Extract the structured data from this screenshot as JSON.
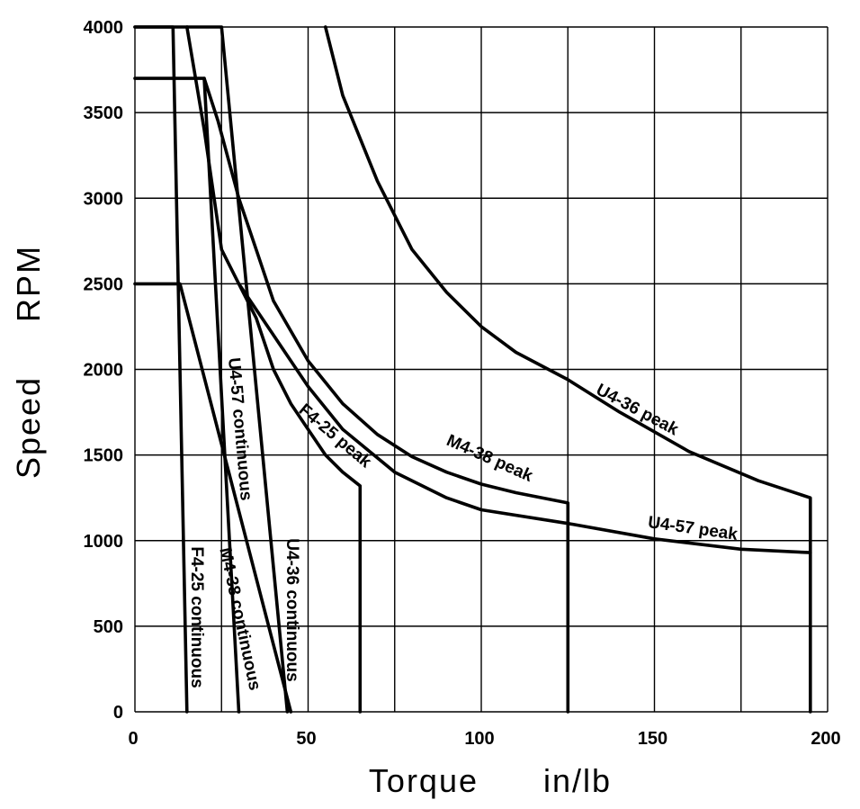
{
  "chart_data": {
    "type": "line",
    "title": "",
    "xlabel": "Torque      in/lb",
    "ylabel": "Speed     RPM",
    "xlim": [
      0,
      200
    ],
    "ylim": [
      0,
      4000
    ],
    "grid": true,
    "xticks": [
      0,
      25,
      50,
      75,
      100,
      125,
      150,
      175,
      200
    ],
    "yticks": [
      0,
      500,
      1000,
      1500,
      2000,
      2500,
      3000,
      3500,
      4000
    ],
    "xtick_labels": [
      "0",
      "50",
      "100",
      "150",
      "200"
    ],
    "xtick_label_values": [
      0,
      50,
      100,
      150,
      200
    ],
    "ytick_labels": [
      "0",
      "500",
      "1000",
      "1500",
      "2000",
      "2500",
      "3000",
      "3500",
      "4000"
    ],
    "series": [
      {
        "name": "F4-25 continuous",
        "points": [
          [
            0,
            4000
          ],
          [
            11,
            4000
          ],
          [
            15,
            0
          ]
        ]
      },
      {
        "name": "M4-38 continuous",
        "points": [
          [
            0,
            3700
          ],
          [
            20,
            3700
          ],
          [
            30,
            0
          ]
        ]
      },
      {
        "name": "U4-36 continuous",
        "points": [
          [
            0,
            4000
          ],
          [
            25,
            4000
          ],
          [
            44,
            0
          ]
        ]
      },
      {
        "name": "U4-57 continuous",
        "points": [
          [
            0,
            2500
          ],
          [
            13,
            2500
          ],
          [
            45,
            0
          ]
        ]
      },
      {
        "name": "F4-25 peak",
        "points": [
          [
            15,
            4000
          ],
          [
            20,
            3400
          ],
          [
            25,
            2700
          ],
          [
            30,
            2500
          ],
          [
            35,
            2300
          ],
          [
            40,
            2000
          ],
          [
            45,
            1800
          ],
          [
            50,
            1650
          ],
          [
            55,
            1500
          ],
          [
            60,
            1400
          ],
          [
            65,
            1320
          ],
          [
            65,
            0
          ]
        ]
      },
      {
        "name": "M4-38 peak",
        "points": [
          [
            20,
            3700
          ],
          [
            24,
            3450
          ],
          [
            30,
            3000
          ],
          [
            35,
            2700
          ],
          [
            40,
            2400
          ],
          [
            50,
            2050
          ],
          [
            60,
            1800
          ],
          [
            70,
            1620
          ],
          [
            80,
            1490
          ],
          [
            90,
            1400
          ],
          [
            100,
            1330
          ],
          [
            110,
            1280
          ],
          [
            125,
            1220
          ],
          [
            125,
            0
          ]
        ]
      },
      {
        "name": "U4-36 peak",
        "points": [
          [
            55,
            4000
          ],
          [
            60,
            3600
          ],
          [
            70,
            3100
          ],
          [
            80,
            2700
          ],
          [
            90,
            2450
          ],
          [
            100,
            2250
          ],
          [
            110,
            2100
          ],
          [
            125,
            1940
          ],
          [
            140,
            1750
          ],
          [
            160,
            1520
          ],
          [
            180,
            1350
          ],
          [
            195,
            1250
          ],
          [
            195,
            0
          ]
        ]
      },
      {
        "name": "U4-57 peak",
        "points": [
          [
            30,
            2500
          ],
          [
            40,
            2200
          ],
          [
            50,
            1900
          ],
          [
            60,
            1650
          ],
          [
            75,
            1400
          ],
          [
            90,
            1250
          ],
          [
            100,
            1180
          ],
          [
            125,
            1100
          ],
          [
            150,
            1010
          ],
          [
            175,
            950
          ],
          [
            195,
            930
          ]
        ]
      }
    ],
    "annotations": [
      "F4-25 continuous",
      "M4-38 continuous",
      "U4-36 continuous",
      "U4-57 continuous",
      "F4-25 peak",
      "M4-38 peak",
      "U4-36 peak",
      "U4-57 peak"
    ]
  }
}
